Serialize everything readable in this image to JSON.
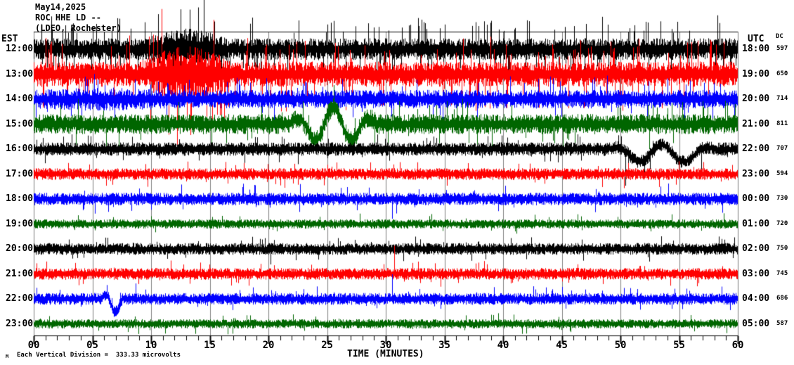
{
  "header": {
    "date": "May14,2025",
    "station_line": "ROC HHE LD --",
    "network_line": "(LDEO, Rochester)"
  },
  "axes": {
    "left_label": "EST",
    "right_label": "UTC",
    "right_sub_label": "DC",
    "x_label": "TIME (MINUTES)",
    "x_tick_labels": [
      "00",
      "05",
      "10",
      "15",
      "20",
      "25",
      "30",
      "35",
      "40",
      "45",
      "50",
      "55",
      "60"
    ]
  },
  "footer": {
    "scale_note": "Each Vertical Division =  333.33 microvolts",
    "corner_mark": "M"
  },
  "colors": {
    "black": "#000000",
    "red": "#ff0000",
    "blue": "#0000ff",
    "green": "#006600",
    "grid": "#808080",
    "axis": "#000000",
    "background": "#ffffff"
  },
  "chart_data": {
    "type": "line",
    "subtype": "helicorder-seismogram",
    "title": "ROC HHE LD -- (LDEO, Rochester) May14,2025",
    "xlabel": "TIME (MINUTES)",
    "x_range_minutes": [
      0,
      60
    ],
    "x_major_tick_minutes": 5,
    "x_minor_tick_minutes": 1,
    "grid": "vertical-every-5-minutes",
    "vertical_division_microvolts": 333.33,
    "traces": [
      {
        "est": "12:00",
        "utc": "18:00",
        "dc": "597",
        "color": "black",
        "amp": 13,
        "spike_prob": 0.14,
        "spike_amp": 34,
        "events": [
          {
            "type": "burst",
            "start": 9.5,
            "end": 16.5,
            "mult": 1.9,
            "spike_amp": 70,
            "spike_prob": 0.1
          }
        ]
      },
      {
        "est": "13:00",
        "utc": "19:00",
        "dc": "650",
        "color": "red",
        "amp": 15,
        "spike_prob": 0.16,
        "spike_amp": 38,
        "events": [
          {
            "type": "burst",
            "start": 9.0,
            "end": 17.0,
            "mult": 2.2,
            "spike_amp": 95,
            "spike_prob": 0.12
          }
        ]
      },
      {
        "est": "14:00",
        "utc": "20:00",
        "dc": "714",
        "color": "blue",
        "amp": 11,
        "spike_prob": 0.08,
        "spike_amp": 22,
        "events": [
          {
            "type": "burst",
            "start": 0,
            "end": 12,
            "mult": 1.25,
            "spike_amp": 24,
            "spike_prob": 0.08
          }
        ]
      },
      {
        "est": "15:00",
        "utc": "21:00",
        "dc": "811",
        "color": "green",
        "amp": 12,
        "spike_prob": 0.06,
        "spike_amp": 28,
        "events": [
          {
            "type": "wander",
            "start": 21.5,
            "end": 29.5,
            "amp": 26,
            "cycles": 2.5,
            "bias": -2
          }
        ]
      },
      {
        "est": "16:00",
        "utc": "22:00",
        "dc": "707",
        "color": "black",
        "amp": 8,
        "spike_prob": 0.05,
        "spike_amp": 14,
        "events": [
          {
            "type": "wander",
            "start": 48.5,
            "end": 58.5,
            "amp": 14,
            "cycles": 2.5,
            "bias": -8
          },
          {
            "type": "spike",
            "minute": 50.4,
            "height": -52
          },
          {
            "type": "spike",
            "minute": 56.9,
            "height": -36
          }
        ]
      },
      {
        "est": "17:00",
        "utc": "23:00",
        "dc": "594",
        "color": "red",
        "amp": 7,
        "spike_prob": 0.05,
        "spike_amp": 12,
        "events": [
          {
            "type": "spike",
            "minute": 50.3,
            "height": -20
          }
        ]
      },
      {
        "est": "18:00",
        "utc": "00:00",
        "dc": "730",
        "color": "blue",
        "amp": 7.5,
        "spike_prob": 0.05,
        "spike_amp": 14,
        "events": [
          {
            "type": "spike",
            "minute": 18.8,
            "height": 20
          },
          {
            "type": "spike",
            "minute": 30.55,
            "height": -28
          }
        ]
      },
      {
        "est": "19:00",
        "utc": "01:00",
        "dc": "720",
        "color": "green",
        "amp": 5.5,
        "spike_prob": 0.04,
        "spike_amp": 9,
        "events": []
      },
      {
        "est": "20:00",
        "utc": "02:00",
        "dc": "750",
        "color": "black",
        "amp": 7,
        "spike_prob": 0.05,
        "spike_amp": 11,
        "events": [
          {
            "type": "spike",
            "minute": 20.2,
            "height": -22
          },
          {
            "type": "spike",
            "minute": 53.5,
            "height": 18
          }
        ]
      },
      {
        "est": "21:00",
        "utc": "03:00",
        "dc": "745",
        "color": "red",
        "amp": 7,
        "spike_prob": 0.06,
        "spike_amp": 12,
        "events": [
          {
            "type": "spike",
            "minute": 30.7,
            "height": 40
          }
        ]
      },
      {
        "est": "22:00",
        "utc": "04:00",
        "dc": "686",
        "color": "blue",
        "amp": 7,
        "spike_prob": 0.05,
        "spike_amp": 11,
        "events": [
          {
            "type": "wander",
            "start": 5.6,
            "end": 7.8,
            "amp": 14,
            "cycles": 1.2,
            "bias": -6
          },
          {
            "type": "spike",
            "minute": 8.7,
            "height": 22
          },
          {
            "type": "spike",
            "minute": 30.55,
            "height": 35
          }
        ]
      },
      {
        "est": "23:00",
        "utc": "05:00",
        "dc": "587",
        "color": "green",
        "amp": 5.5,
        "spike_prob": 0.04,
        "spike_amp": 9,
        "events": []
      }
    ]
  }
}
